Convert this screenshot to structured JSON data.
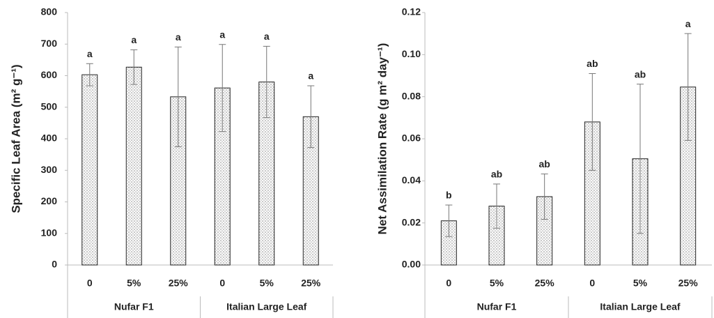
{
  "chart_data": [
    {
      "type": "bar",
      "ylabel": "Specific Leaf Area (m² g⁻¹)",
      "categories": [
        "0",
        "5%",
        "25%",
        "0",
        "5%",
        "25%"
      ],
      "groups": [
        "Nufar F1",
        "Italian Large Leaf"
      ],
      "values": [
        603,
        627,
        533,
        561,
        580,
        470
      ],
      "errors": [
        35,
        55,
        158,
        138,
        113,
        98
      ],
      "letters": [
        "a",
        "a",
        "a",
        "a",
        "a",
        "a"
      ],
      "ylim": [
        0,
        800
      ],
      "yticks": [
        0,
        100,
        200,
        300,
        400,
        500,
        600,
        700,
        800
      ]
    },
    {
      "type": "bar",
      "ylabel": "Net Assimilation Rate (g m² day⁻¹)",
      "categories": [
        "0",
        "5%",
        "25%",
        "0",
        "5%",
        "25%"
      ],
      "groups": [
        "Nufar F1",
        "Italian Large Leaf"
      ],
      "values": [
        0.021,
        0.028,
        0.0325,
        0.068,
        0.0505,
        0.0846
      ],
      "errors": [
        0.0075,
        0.0105,
        0.0108,
        0.023,
        0.0355,
        0.0254
      ],
      "letters": [
        "b",
        "ab",
        "ab",
        "ab",
        "ab",
        "a"
      ],
      "ylim": [
        0,
        0.12
      ],
      "yticks": [
        {
          "value": 0,
          "label": "0.00"
        },
        {
          "value": 0.02,
          "label": "0.02"
        },
        {
          "value": 0.04,
          "label": "0.04"
        },
        {
          "value": 0.06,
          "label": "0.06"
        },
        {
          "value": 0.08,
          "label": "0.08"
        },
        {
          "value": 0.1,
          "label": "0.10"
        },
        {
          "value": 0.12,
          "label": "0.12"
        }
      ]
    }
  ]
}
